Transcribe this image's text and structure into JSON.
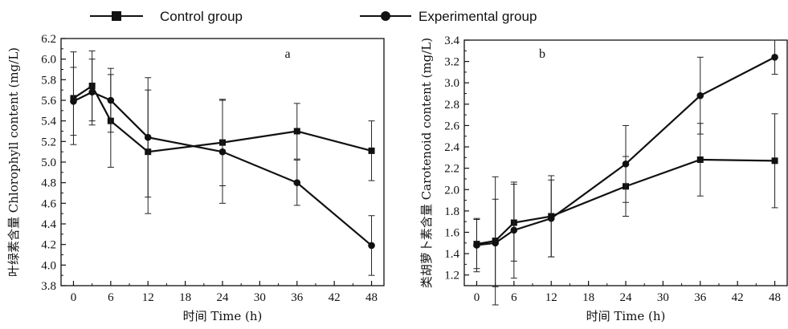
{
  "legend": {
    "position": "top",
    "entries": [
      {
        "label": "Control group",
        "marker": "square"
      },
      {
        "label": "Experimental  group",
        "marker": "circle"
      }
    ]
  },
  "chart_data": [
    {
      "type": "line",
      "panel_label": "a",
      "xlabel": "时间 Time (h)",
      "ylabel": "叶绿素含量 Chlorophyll content (mg/L)",
      "x": [
        0,
        3,
        6,
        12,
        24,
        36,
        48
      ],
      "xticks": [
        0,
        6,
        12,
        18,
        24,
        30,
        36,
        42,
        48
      ],
      "xlim": [
        -2,
        50
      ],
      "ylim": [
        3.8,
        6.2
      ],
      "yticks": [
        3.8,
        4.0,
        4.2,
        4.4,
        4.6,
        4.8,
        5.0,
        5.2,
        5.4,
        5.6,
        5.8,
        6.0,
        6.2
      ],
      "grid": false,
      "series": [
        {
          "name": "Control group",
          "marker": "square",
          "values": [
            5.62,
            5.74,
            5.4,
            5.1,
            5.19,
            5.3,
            5.11
          ],
          "errors": [
            0.45,
            0.34,
            0.45,
            0.6,
            0.42,
            0.27,
            0.29
          ]
        },
        {
          "name": "Experimental  group",
          "marker": "circle",
          "values": [
            5.59,
            5.68,
            5.6,
            5.24,
            5.1,
            4.8,
            4.19
          ],
          "errors": [
            0.33,
            0.32,
            0.31,
            0.58,
            0.5,
            0.22,
            0.29
          ]
        }
      ]
    },
    {
      "type": "line",
      "panel_label": "b",
      "xlabel": "时间 Time (h)",
      "ylabel": "类胡萝卜素含量 Carotenoid content (mg/L)",
      "x": [
        0,
        3,
        6,
        12,
        24,
        36,
        48
      ],
      "xticks": [
        0,
        6,
        12,
        18,
        24,
        30,
        36,
        42,
        48
      ],
      "xlim": [
        -2,
        50
      ],
      "ylim": [
        1.1,
        3.4
      ],
      "yticks": [
        1.2,
        1.4,
        1.6,
        1.8,
        2.0,
        2.2,
        2.4,
        2.6,
        2.8,
        3.0,
        3.2,
        3.4
      ],
      "grid": false,
      "series": [
        {
          "name": "Control group",
          "marker": "square",
          "values": [
            1.49,
            1.52,
            1.69,
            1.75,
            2.03,
            2.28,
            2.27
          ],
          "errors": [
            0.23,
            0.6,
            0.36,
            0.38,
            0.28,
            0.34,
            0.44
          ]
        },
        {
          "name": "Experimental  group",
          "marker": "circle",
          "values": [
            1.48,
            1.5,
            1.62,
            1.73,
            2.24,
            2.88,
            3.24
          ],
          "errors": [
            0.25,
            0.41,
            0.45,
            0.36,
            0.36,
            0.36,
            0.16
          ]
        }
      ]
    }
  ]
}
